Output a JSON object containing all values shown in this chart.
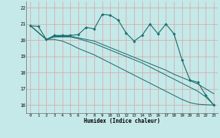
{
  "title": "",
  "xlabel": "Humidex (Indice chaleur)",
  "xlim": [
    -0.5,
    23.5
  ],
  "ylim": [
    15.5,
    22.4
  ],
  "yticks": [
    16,
    17,
    18,
    19,
    20,
    21,
    22
  ],
  "xticks": [
    0,
    1,
    2,
    3,
    4,
    5,
    6,
    7,
    8,
    9,
    10,
    11,
    12,
    13,
    14,
    15,
    16,
    17,
    18,
    19,
    20,
    21,
    22,
    23
  ],
  "background_color": "#c5e8e8",
  "grid_color": "#d8a0a0",
  "line_color": "#1a7070",
  "series": [
    {
      "x": [
        0,
        1,
        2,
        3,
        4,
        5,
        6,
        7,
        8,
        9,
        10,
        11,
        12,
        13,
        14,
        15,
        16,
        17,
        18,
        19,
        20,
        21,
        22,
        23
      ],
      "y": [
        20.9,
        20.85,
        20.05,
        20.3,
        20.3,
        20.3,
        20.35,
        20.8,
        20.7,
        21.6,
        21.55,
        21.25,
        20.45,
        19.95,
        20.3,
        21.0,
        20.4,
        21.0,
        20.4,
        18.8,
        17.55,
        17.4,
        16.6,
        16.0
      ],
      "marker": "D",
      "markersize": 2.0,
      "linewidth": 0.9
    },
    {
      "x": [
        0,
        2,
        3,
        4,
        5,
        6,
        7,
        8,
        9,
        10,
        11,
        12,
        13,
        14,
        15,
        16,
        17,
        18,
        19,
        20,
        21,
        22,
        23
      ],
      "y": [
        20.9,
        20.05,
        20.05,
        19.95,
        19.75,
        19.5,
        19.3,
        19.1,
        18.85,
        18.6,
        18.35,
        18.1,
        17.85,
        17.6,
        17.35,
        17.1,
        16.85,
        16.6,
        16.35,
        16.15,
        16.05,
        16.02,
        16.0
      ],
      "marker": null,
      "markersize": 0,
      "linewidth": 0.8
    },
    {
      "x": [
        0,
        2,
        3,
        4,
        5,
        6,
        7,
        8,
        9,
        10,
        11,
        12,
        13,
        14,
        15,
        16,
        17,
        18,
        19,
        20,
        21,
        22,
        23
      ],
      "y": [
        20.9,
        20.05,
        20.2,
        20.2,
        20.2,
        20.1,
        19.95,
        19.8,
        19.6,
        19.4,
        19.2,
        19.0,
        18.8,
        18.6,
        18.35,
        18.1,
        17.85,
        17.6,
        17.35,
        17.1,
        16.85,
        16.5,
        16.0
      ],
      "marker": null,
      "markersize": 0,
      "linewidth": 0.8
    },
    {
      "x": [
        0,
        2,
        3,
        4,
        5,
        6,
        7,
        8,
        9,
        10,
        11,
        12,
        13,
        14,
        15,
        16,
        17,
        18,
        19,
        20,
        21,
        22,
        23
      ],
      "y": [
        20.9,
        20.05,
        20.25,
        20.25,
        20.25,
        20.15,
        20.05,
        19.95,
        19.75,
        19.55,
        19.35,
        19.15,
        18.95,
        18.75,
        18.55,
        18.35,
        18.15,
        17.9,
        17.7,
        17.5,
        17.3,
        17.0,
        16.7
      ],
      "marker": null,
      "markersize": 0,
      "linewidth": 0.8
    }
  ]
}
